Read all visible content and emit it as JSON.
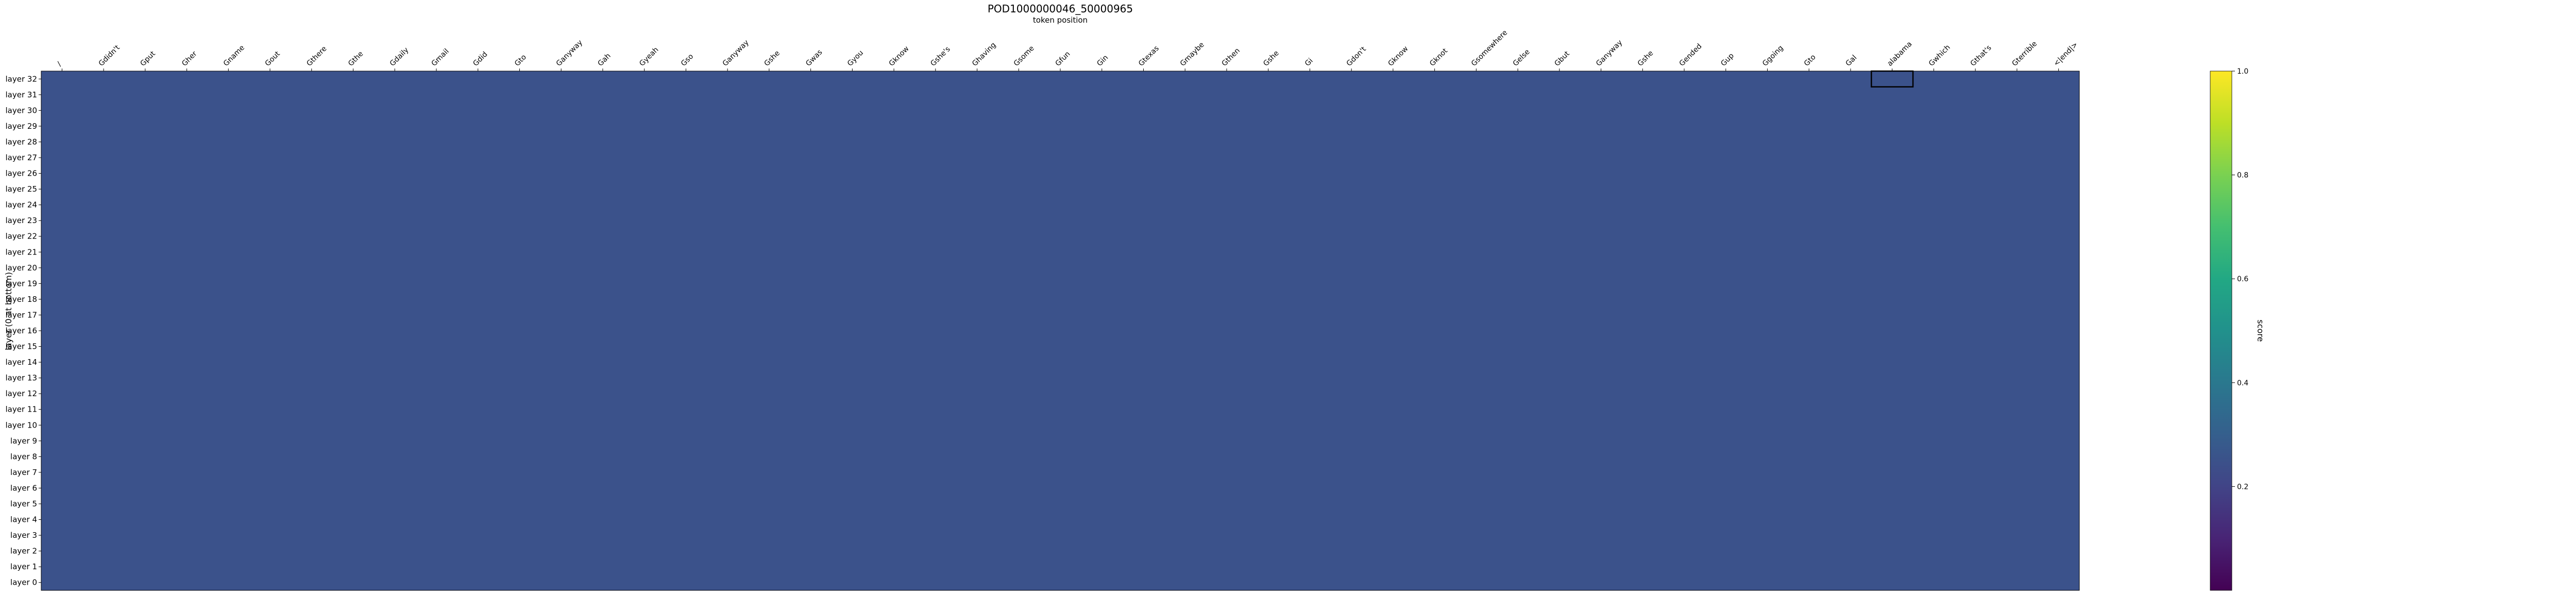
{
  "chart_data": {
    "type": "heatmap",
    "title": "POD1000000046_50000965",
    "xlabel": "token position",
    "ylabel": "layer (0 at bottom)",
    "colorbar_label": "score",
    "colormap": "viridis",
    "value_range": [
      0,
      1
    ],
    "colorbar_ticks": [
      "0.2",
      "0.4",
      "0.6",
      "0.8",
      "1.0"
    ],
    "colorbar_tick_values": [
      0.2,
      0.4,
      0.6,
      0.8,
      1.0
    ],
    "x_tick_labels": [
      "/",
      "Gdidn't",
      "Gput",
      "Gher",
      "Gname",
      "Gout",
      "Gthere",
      "Gthe",
      "Gdaily",
      "Gmail",
      "Gdid",
      "Gto",
      "Ganyway",
      "Gah",
      "Gyeah",
      "Gso",
      "Ganyway",
      "Gshe",
      "Gwas",
      "Gyou",
      "Gknow",
      "Gshe's",
      "Ghaving",
      "Gsome",
      "Gfun",
      "Gin",
      "Gtexas",
      "Gmaybe",
      "Gthen",
      "Gshe",
      "Gi",
      "Gdon't",
      "Gknow",
      "Gknot",
      "Gsomewhere",
      "Gelse",
      "Gbut",
      "Ganyway",
      "Gshe",
      "Gended",
      "Gup",
      "Ggoing",
      "Gto",
      "Gal",
      "alabama",
      "Gwhich",
      "Gthat's",
      "Gterrible",
      "<|end|>"
    ],
    "y_tick_labels": [
      "layer 32",
      "layer 31",
      "layer 30",
      "layer 29",
      "layer 28",
      "layer 27",
      "layer 26",
      "layer 25",
      "layer 24",
      "layer 23",
      "layer 22",
      "layer 21",
      "layer 20",
      "layer 19",
      "layer 18",
      "layer 17",
      "layer 16",
      "layer 15",
      "layer 14",
      "layer 13",
      "layer 12",
      "layer 11",
      "layer 10",
      "layer 9",
      "layer 8",
      "layer 7",
      "layer 6",
      "layer 5",
      "layer 4",
      "layer 3",
      "layer 2",
      "layer 1",
      "layer 0"
    ],
    "highlight": {
      "layer": 32,
      "token_index": 44
    },
    "grid": false,
    "legend": "none"
  }
}
